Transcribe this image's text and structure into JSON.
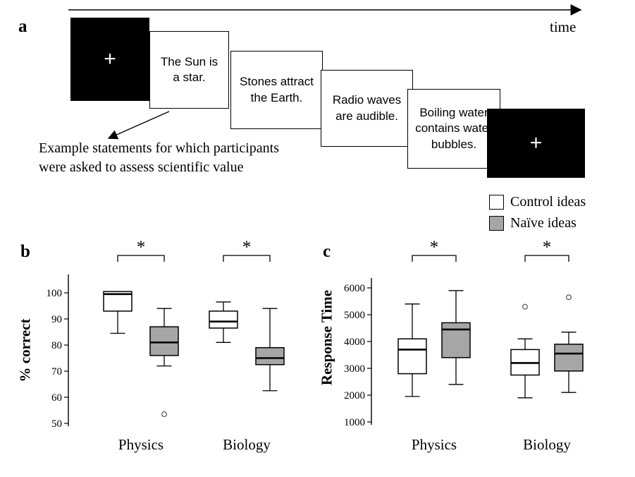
{
  "figure": {
    "panel_a_label": "a",
    "panel_b_label": "b",
    "panel_c_label": "c"
  },
  "panel_a": {
    "time_label": "time",
    "fixation_symbol": "+",
    "cards": [
      "The Sun is a star.",
      "Stones attract the Earth.",
      "Radio waves are audible.",
      "Boiling water contains water bubbles."
    ],
    "caption": "Example statements for which participants\nwere asked to assess scientific value"
  },
  "legend": {
    "items": [
      {
        "label": "Control ideas",
        "color": "#ffffff"
      },
      {
        "label": "Naïve ideas",
        "color": "#a6a6a6"
      }
    ]
  },
  "chart_data": [
    {
      "type": "boxplot",
      "panel": "b",
      "ylabel": "% correct",
      "xlabel": "",
      "yticks": [
        50,
        60,
        70,
        80,
        90,
        100
      ],
      "ylim": [
        47,
        104
      ],
      "categories": [
        "Physics",
        "Biology"
      ],
      "series": [
        {
          "name": "Control ideas",
          "fill": "#ffffff",
          "boxes": [
            {
              "low": 84.5,
              "q1": 93,
              "median": 99.5,
              "q3": 100.5,
              "high": 100.5,
              "outliers": []
            },
            {
              "low": 81,
              "q1": 86.5,
              "median": 89,
              "q3": 93,
              "high": 96.5,
              "outliers": []
            }
          ]
        },
        {
          "name": "Naïve ideas",
          "fill": "#a6a6a6",
          "boxes": [
            {
              "low": 72,
              "q1": 76,
              "median": 81,
              "q3": 87,
              "high": 94,
              "outliers": [
                53.5
              ]
            },
            {
              "low": 62.5,
              "q1": 72.5,
              "median": 75,
              "q3": 79,
              "high": 94,
              "outliers": []
            }
          ]
        }
      ],
      "significance": [
        {
          "category": "Physics",
          "label": "*"
        },
        {
          "category": "Biology",
          "label": "*"
        }
      ]
    },
    {
      "type": "boxplot",
      "panel": "c",
      "ylabel": "Response Time",
      "xlabel": "",
      "yticks": [
        1000,
        2000,
        3000,
        4000,
        5000,
        6000
      ],
      "ylim": [
        800,
        6400
      ],
      "categories": [
        "Physics",
        "Biology"
      ],
      "series": [
        {
          "name": "Control ideas",
          "fill": "#ffffff",
          "boxes": [
            {
              "low": 1950,
              "q1": 2800,
              "median": 3700,
              "q3": 4100,
              "high": 5400,
              "outliers": []
            },
            {
              "low": 1900,
              "q1": 2750,
              "median": 3200,
              "q3": 3700,
              "high": 4100,
              "outliers": [
                5300
              ]
            }
          ]
        },
        {
          "name": "Naïve ideas",
          "fill": "#a6a6a6",
          "boxes": [
            {
              "low": 2400,
              "q1": 3400,
              "median": 4450,
              "q3": 4700,
              "high": 5900,
              "outliers": []
            },
            {
              "low": 2100,
              "q1": 2900,
              "median": 3550,
              "q3": 3900,
              "high": 4350,
              "outliers": [
                5650
              ]
            }
          ]
        }
      ],
      "significance": [
        {
          "category": "Physics",
          "label": "*"
        },
        {
          "category": "Biology",
          "label": "*"
        }
      ]
    }
  ]
}
